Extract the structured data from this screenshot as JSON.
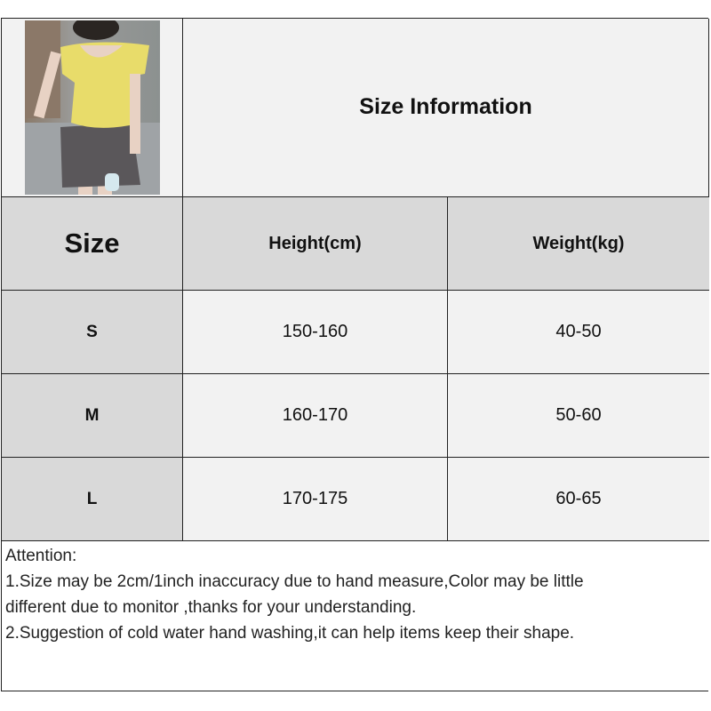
{
  "header": {
    "title": "Size Information"
  },
  "table": {
    "columns": [
      "Size",
      "Height(cm)",
      "Weight(kg)"
    ],
    "rows": [
      {
        "size": "S",
        "height": "150-160",
        "weight": "40-50"
      },
      {
        "size": "M",
        "height": "160-170",
        "weight": "50-60"
      },
      {
        "size": "L",
        "height": "170-175",
        "weight": "60-65"
      }
    ]
  },
  "notes": {
    "heading": "Attention:",
    "line1": "1.Size may be 2cm/1inch inaccuracy due to hand measure,Color may be little",
    "line2": "different due to monitor ,thanks for your understanding.",
    "line3": "2.Suggestion of cold water hand washing,it can help items keep their shape."
  },
  "colors": {
    "header_bg": "#d9d9d9",
    "cell_bg": "#f2f2f2",
    "shirt": "#e8dc6a",
    "skirt": "#5a575a"
  }
}
